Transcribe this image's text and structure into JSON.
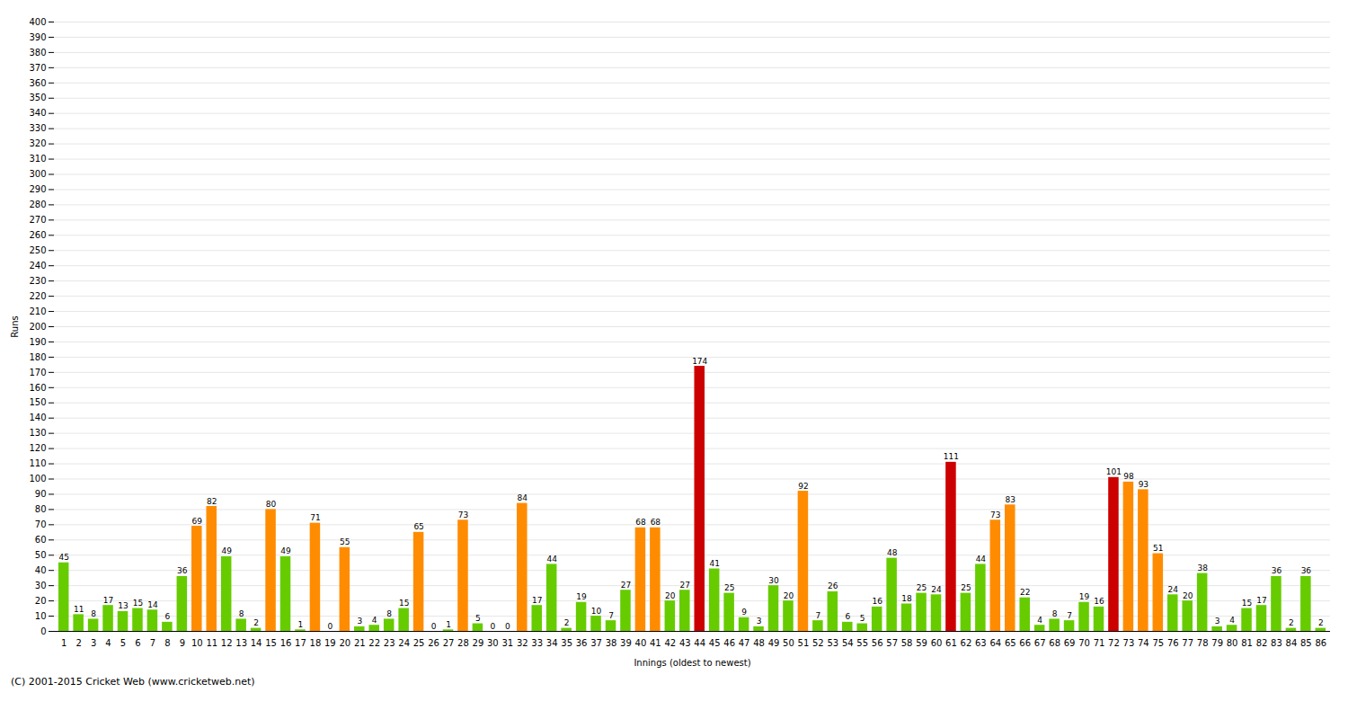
{
  "chart_data": {
    "type": "bar",
    "xlabel": "Innings (oldest to newest)",
    "ylabel": "Runs",
    "footer": "(C) 2001-2015 Cricket Web (www.cricketweb.net)",
    "categories": [
      "1",
      "2",
      "3",
      "4",
      "5",
      "6",
      "7",
      "8",
      "9",
      "10",
      "11",
      "12",
      "13",
      "14",
      "15",
      "16",
      "17",
      "18",
      "19",
      "20",
      "21",
      "22",
      "23",
      "24",
      "25",
      "26",
      "27",
      "28",
      "29",
      "30",
      "31",
      "32",
      "33",
      "34",
      "35",
      "36",
      "37",
      "38",
      "39",
      "40",
      "41",
      "42",
      "43",
      "44",
      "45",
      "46",
      "47",
      "48",
      "49",
      "50",
      "51",
      "52",
      "53",
      "54",
      "55",
      "56",
      "57",
      "58",
      "59",
      "60",
      "61",
      "62",
      "63",
      "64",
      "65",
      "66",
      "67",
      "68",
      "69",
      "70",
      "71",
      "72",
      "73",
      "74",
      "75",
      "76",
      "77",
      "78",
      "79",
      "80",
      "81",
      "82",
      "83",
      "84",
      "85",
      "86"
    ],
    "values": [
      45,
      11,
      8,
      17,
      13,
      15,
      14,
      6,
      36,
      69,
      82,
      49,
      8,
      2,
      80,
      49,
      1,
      71,
      0,
      55,
      3,
      4,
      8,
      15,
      65,
      0,
      1,
      73,
      5,
      0,
      0,
      84,
      17,
      44,
      2,
      19,
      10,
      7,
      27,
      68,
      68,
      20,
      27,
      174,
      41,
      25,
      9,
      3,
      30,
      20,
      92,
      7,
      26,
      6,
      5,
      16,
      48,
      18,
      25,
      24,
      111,
      25,
      44,
      73,
      83,
      22,
      4,
      8,
      7,
      19,
      16,
      101,
      98,
      93,
      51,
      24,
      20,
      38,
      3,
      4,
      15,
      17,
      36,
      2,
      36,
      2
    ],
    "colors": [
      "#66cc00",
      "#66cc00",
      "#66cc00",
      "#66cc00",
      "#66cc00",
      "#66cc00",
      "#66cc00",
      "#66cc00",
      "#66cc00",
      "#ff8c00",
      "#ff8c00",
      "#66cc00",
      "#66cc00",
      "#66cc00",
      "#ff8c00",
      "#66cc00",
      "#66cc00",
      "#ff8c00",
      "#66cc00",
      "#ff8c00",
      "#66cc00",
      "#66cc00",
      "#66cc00",
      "#66cc00",
      "#ff8c00",
      "#66cc00",
      "#66cc00",
      "#ff8c00",
      "#66cc00",
      "#66cc00",
      "#66cc00",
      "#ff8c00",
      "#66cc00",
      "#66cc00",
      "#66cc00",
      "#66cc00",
      "#66cc00",
      "#66cc00",
      "#66cc00",
      "#ff8c00",
      "#ff8c00",
      "#66cc00",
      "#66cc00",
      "#cc0000",
      "#66cc00",
      "#66cc00",
      "#66cc00",
      "#66cc00",
      "#66cc00",
      "#66cc00",
      "#ff8c00",
      "#66cc00",
      "#66cc00",
      "#66cc00",
      "#66cc00",
      "#66cc00",
      "#66cc00",
      "#66cc00",
      "#66cc00",
      "#66cc00",
      "#cc0000",
      "#66cc00",
      "#66cc00",
      "#ff8c00",
      "#ff8c00",
      "#66cc00",
      "#66cc00",
      "#66cc00",
      "#66cc00",
      "#66cc00",
      "#66cc00",
      "#cc0000",
      "#ff8c00",
      "#ff8c00",
      "#ff8c00",
      "#66cc00",
      "#66cc00",
      "#66cc00",
      "#66cc00",
      "#66cc00",
      "#66cc00",
      "#66cc00",
      "#66cc00",
      "#66cc00",
      "#66cc00",
      "#66cc00"
    ],
    "ylim": [
      0,
      400
    ],
    "yticks": [
      0,
      10,
      20,
      30,
      40,
      50,
      60,
      70,
      80,
      90,
      100,
      110,
      120,
      130,
      140,
      150,
      160,
      170,
      180,
      190,
      200,
      210,
      220,
      230,
      240,
      250,
      260,
      270,
      280,
      290,
      300,
      310,
      320,
      330,
      340,
      350,
      360,
      370,
      380,
      390,
      400
    ],
    "grid": true,
    "data_labels": true
  }
}
